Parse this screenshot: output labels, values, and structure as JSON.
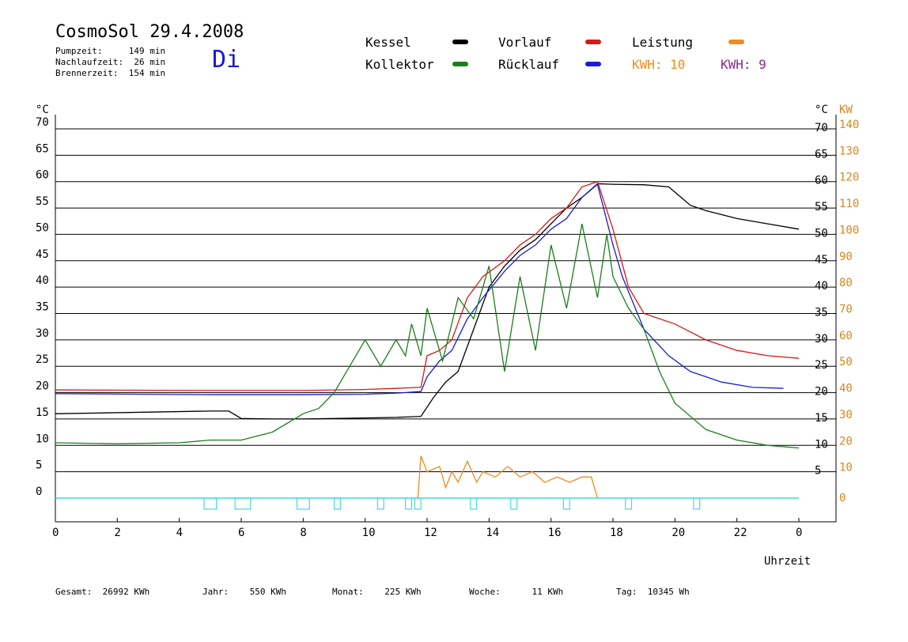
{
  "header": {
    "title": "CosmoSol 29.4.2008",
    "pump": "Pumpzeit:     149 min",
    "nachlauf": "Nachlaufzeit:  26 min",
    "brenner": "Brennerzeit:  154 min",
    "day": "Di"
  },
  "legend": {
    "kessel": "Kessel",
    "kollektor": "Kollektor",
    "vorlauf": "Vorlauf",
    "ruecklauf": "Rücklauf",
    "leistung": "Leistung",
    "kwh1": "KWH: 10",
    "kwh2": "KWH: 9"
  },
  "colors": {
    "kessel": "#000000",
    "kollektor": "#1a7f1a",
    "vorlauf": "#d81818",
    "ruecklauf": "#1a1ad8",
    "leistung": "#f08a1e",
    "kwh2": "#8a2a8a",
    "pump": "#44d8e0",
    "right_axis": "#d9861e"
  },
  "footer": {
    "gesamt": "Gesamt:  26992 KWh",
    "jahr": "Jahr:    550 KWh",
    "monat": "Monat:    225 KWh",
    "woche": "Woche:      11 KWh",
    "tag": "Tag:  10345 Wh"
  },
  "chart_data": {
    "type": "line",
    "xlabel": "Uhrzeit",
    "ylabel_left": "°C",
    "ylabel_right_temp": "°C",
    "ylabel_right_power": "KW",
    "xlim": [
      0,
      24
    ],
    "ylim": [
      0,
      70
    ],
    "x_ticks": [
      "0",
      "2",
      "4",
      "6",
      "8",
      "10",
      "12",
      "14",
      "16",
      "18",
      "20",
      "22",
      "0"
    ],
    "y_ticks_left": [
      "0",
      "5",
      "10",
      "15",
      "20",
      "25",
      "30",
      "35",
      "40",
      "45",
      "50",
      "55",
      "60",
      "65",
      "70"
    ],
    "y_ticks_right_temp": [
      "5",
      "10",
      "15",
      "20",
      "25",
      "30",
      "35",
      "40",
      "45",
      "50",
      "55",
      "60",
      "65",
      "70"
    ],
    "y_ticks_right_power": [
      "0",
      "10",
      "20",
      "30",
      "40",
      "50",
      "60",
      "70",
      "80",
      "90",
      "100",
      "110",
      "120",
      "130",
      "140"
    ],
    "grid": true,
    "series": [
      {
        "name": "Kessel",
        "x": [
          0,
          5,
          5.6,
          6,
          7,
          8,
          9,
          10,
          11,
          11.8,
          12.2,
          12.6,
          13,
          13.5,
          14,
          14.5,
          15,
          15.5,
          16,
          16.5,
          17,
          17.5,
          18,
          19,
          19.8,
          20.2,
          20.5,
          21,
          22,
          23,
          24
        ],
        "y": [
          16,
          16.5,
          16.5,
          15.1,
          15,
          15,
          15.1,
          15.2,
          15.3,
          15.5,
          19,
          22,
          24,
          32,
          40,
          44,
          47,
          49,
          52,
          55,
          57,
          59.6,
          59.5,
          59.4,
          59,
          57,
          55.5,
          54.5,
          53,
          52,
          51
        ]
      },
      {
        "name": "Vorlauf",
        "x": [
          0,
          5,
          8,
          10,
          11,
          11.8,
          12,
          12.4,
          12.8,
          13.3,
          13.8,
          14.5,
          15,
          15.5,
          16,
          16.5,
          17,
          17.5,
          18,
          18.5,
          19,
          20,
          21,
          22,
          23,
          24
        ],
        "y": [
          20.5,
          20.4,
          20.4,
          20.6,
          20.8,
          21,
          27,
          28,
          30,
          38,
          42,
          45,
          48,
          50,
          53,
          55,
          59,
          60,
          51,
          40,
          35,
          33,
          30,
          28,
          27,
          26.5
        ]
      },
      {
        "name": "Rücklauf",
        "x": [
          0,
          5,
          8,
          10,
          11,
          11.8,
          12,
          12.4,
          12.8,
          13.3,
          13.8,
          14.5,
          15,
          15.5,
          16,
          16.5,
          17,
          17.5,
          18,
          18.3,
          19,
          19.8,
          20.5,
          21.5,
          22.5,
          23.5
        ],
        "y": [
          19.8,
          19.6,
          19.6,
          19.7,
          19.9,
          20.2,
          23,
          26,
          28,
          34,
          38,
          43,
          46,
          48,
          51,
          53,
          57,
          59.5,
          48,
          42,
          32,
          27,
          24,
          22,
          21,
          20.8
        ]
      },
      {
        "name": "Kollektor",
        "x": [
          0,
          2,
          4,
          5,
          6,
          7,
          8,
          8.5,
          9,
          9.5,
          10,
          10.5,
          11,
          11.3,
          11.5,
          11.8,
          12,
          12.5,
          13,
          13.5,
          14,
          14.5,
          15,
          15.5,
          16,
          16.5,
          17,
          17.5,
          17.8,
          18,
          18.5,
          19,
          19.5,
          20,
          21,
          22,
          23,
          24
        ],
        "y": [
          10.5,
          10.3,
          10.5,
          11,
          11,
          12.5,
          16,
          17,
          20,
          25,
          30,
          25,
          30,
          27,
          33,
          27,
          36,
          26,
          38,
          34,
          44,
          24,
          42,
          28,
          48,
          36,
          52,
          38,
          50,
          42,
          36,
          32,
          24,
          18,
          13,
          11,
          10,
          9.5
        ]
      },
      {
        "name": "Leistung",
        "x": [
          11.7,
          11.8,
          12,
          12.4,
          12.6,
          12.8,
          13,
          13.3,
          13.6,
          13.8,
          14.2,
          14.6,
          15,
          15.4,
          15.8,
          16.2,
          16.6,
          17,
          17.3,
          17.5
        ],
        "y": [
          0,
          8,
          5,
          6,
          2,
          5,
          3,
          7,
          3,
          5,
          4,
          6,
          4,
          5,
          3,
          4,
          3,
          4,
          4,
          0
        ]
      }
    ],
    "pump_blocks": [
      [
        4.8,
        5.2
      ],
      [
        5.8,
        6.3
      ],
      [
        7.8,
        8.2
      ],
      [
        9,
        9.2
      ],
      [
        10.4,
        10.6
      ],
      [
        11.3,
        11.5
      ],
      [
        11.6,
        11.8
      ],
      [
        13.4,
        13.6
      ],
      [
        14.7,
        14.9
      ],
      [
        16.4,
        16.6
      ],
      [
        18.4,
        18.6
      ],
      [
        20.6,
        20.8
      ]
    ]
  }
}
